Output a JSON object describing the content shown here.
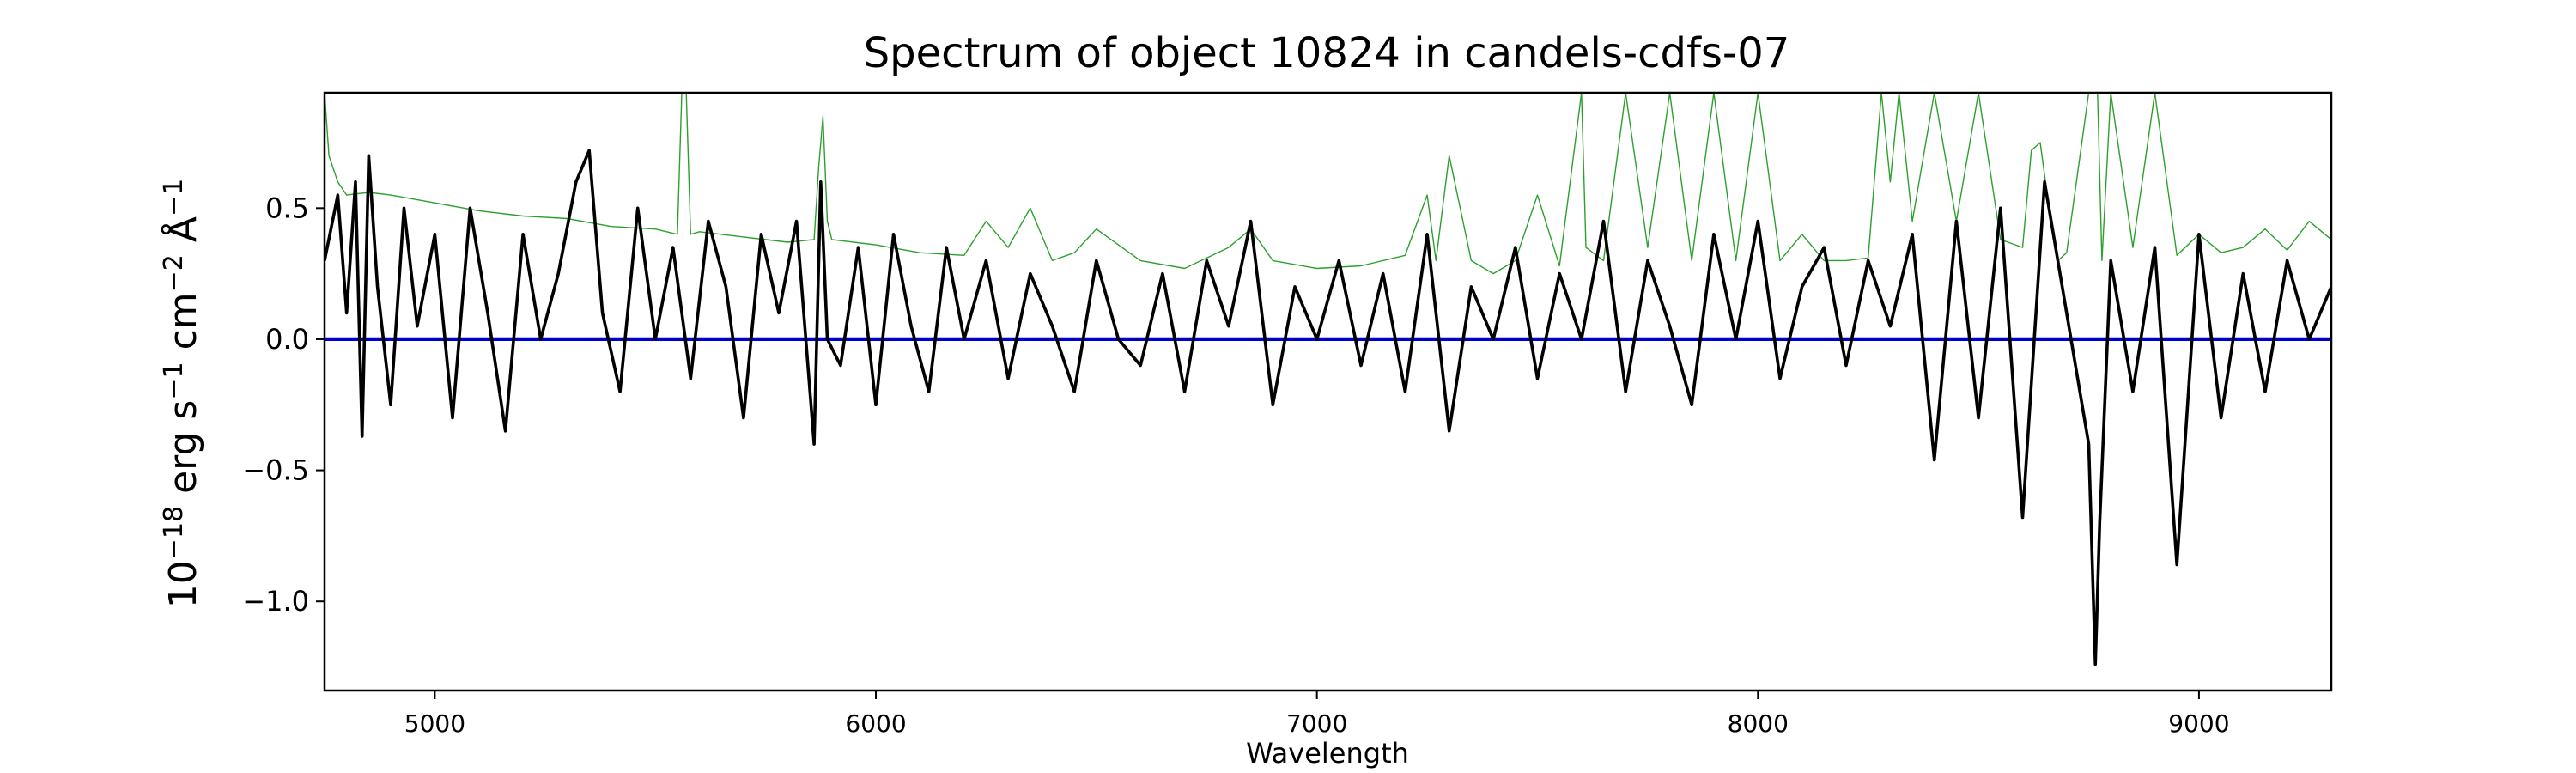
{
  "chart_data": {
    "type": "line",
    "title": "Spectrum of object 10824 in candels-cdfs-07",
    "xlabel": "Wavelength",
    "ylabel_parts": [
      "10",
      "−18",
      " erg s",
      "−1",
      " cm",
      "−2",
      " Å",
      "−1"
    ],
    "xlim": [
      4750,
      9300
    ],
    "ylim": [
      -1.34,
      0.94
    ],
    "xticks": [
      5000,
      6000,
      7000,
      8000,
      9000
    ],
    "xtick_labels": [
      "5000",
      "6000",
      "7000",
      "8000",
      "9000"
    ],
    "yticks": [
      -1.0,
      -0.5,
      0.0,
      0.5
    ],
    "ytick_labels": [
      "−1.0",
      "−0.5",
      "0.0",
      "0.5"
    ],
    "grid": false,
    "colors": {
      "flux": "#000000",
      "error": "#2ca02c",
      "zero": "#0000cc"
    },
    "series": [
      {
        "key": "flux",
        "style": "thick",
        "x": [
          4750,
          4780,
          4800,
          4820,
          4835,
          4850,
          4870,
          4900,
          4930,
          4960,
          5000,
          5040,
          5080,
          5120,
          5160,
          5200,
          5240,
          5280,
          5320,
          5350,
          5380,
          5420,
          5460,
          5500,
          5540,
          5580,
          5620,
          5660,
          5700,
          5740,
          5780,
          5820,
          5860,
          5875,
          5890,
          5920,
          5960,
          6000,
          6040,
          6080,
          6120,
          6160,
          6200,
          6250,
          6300,
          6350,
          6400,
          6450,
          6500,
          6550,
          6600,
          6650,
          6700,
          6750,
          6800,
          6850,
          6900,
          6950,
          7000,
          7050,
          7100,
          7150,
          7200,
          7250,
          7300,
          7350,
          7400,
          7450,
          7500,
          7550,
          7600,
          7650,
          7700,
          7750,
          7800,
          7850,
          7900,
          7950,
          8000,
          8050,
          8100,
          8150,
          8200,
          8250,
          8300,
          8350,
          8400,
          8450,
          8500,
          8550,
          8600,
          8650,
          8700,
          8750,
          8765,
          8775,
          8800,
          8850,
          8900,
          8950,
          9000,
          9050,
          9100,
          9150,
          9200,
          9250,
          9300
        ],
        "y": [
          0.3,
          0.55,
          0.1,
          0.6,
          -0.37,
          0.7,
          0.2,
          -0.25,
          0.5,
          0.05,
          0.4,
          -0.3,
          0.5,
          0.1,
          -0.35,
          0.4,
          0.0,
          0.25,
          0.6,
          0.72,
          0.1,
          -0.2,
          0.5,
          0.0,
          0.35,
          -0.15,
          0.45,
          0.2,
          -0.3,
          0.4,
          0.1,
          0.45,
          -0.4,
          0.6,
          0.0,
          -0.1,
          0.35,
          -0.25,
          0.4,
          0.05,
          -0.2,
          0.35,
          0.0,
          0.3,
          -0.15,
          0.25,
          0.05,
          -0.2,
          0.3,
          0.0,
          -0.1,
          0.25,
          -0.2,
          0.3,
          0.05,
          0.45,
          -0.25,
          0.2,
          0.0,
          0.3,
          -0.1,
          0.25,
          -0.2,
          0.4,
          -0.35,
          0.2,
          0.0,
          0.35,
          -0.15,
          0.25,
          0.0,
          0.45,
          -0.2,
          0.3,
          0.05,
          -0.25,
          0.4,
          0.0,
          0.45,
          -0.15,
          0.2,
          0.35,
          -0.1,
          0.3,
          0.05,
          0.4,
          -0.46,
          0.45,
          -0.3,
          0.5,
          -0.68,
          0.6,
          0.1,
          -0.4,
          -1.24,
          -0.7,
          0.3,
          -0.2,
          0.35,
          -0.86,
          0.4,
          -0.3,
          0.25,
          -0.2,
          0.3,
          0.0,
          0.2
        ]
      },
      {
        "key": "error",
        "style": "thin",
        "x": [
          4750,
          4760,
          4780,
          4800,
          4850,
          4900,
          5000,
          5100,
          5200,
          5300,
          5400,
          5500,
          5550,
          5560,
          5570,
          5580,
          5600,
          5700,
          5800,
          5860,
          5870,
          5880,
          5890,
          5900,
          6000,
          6100,
          6200,
          6250,
          6300,
          6350,
          6400,
          6450,
          6500,
          6600,
          6700,
          6800,
          6850,
          6900,
          7000,
          7100,
          7200,
          7250,
          7270,
          7300,
          7350,
          7400,
          7450,
          7500,
          7550,
          7600,
          7610,
          7650,
          7700,
          7750,
          7800,
          7850,
          7900,
          7950,
          8000,
          8050,
          8100,
          8150,
          8200,
          8250,
          8280,
          8300,
          8320,
          8350,
          8400,
          8450,
          8500,
          8550,
          8600,
          8620,
          8640,
          8660,
          8680,
          8700,
          8750,
          8770,
          8780,
          8800,
          8850,
          8900,
          8950,
          9000,
          9050,
          9100,
          9150,
          9200,
          9250,
          9300
        ],
        "y": [
          0.94,
          0.7,
          0.6,
          0.55,
          0.56,
          0.55,
          0.52,
          0.49,
          0.47,
          0.46,
          0.43,
          0.42,
          0.4,
          0.94,
          0.94,
          0.4,
          0.41,
          0.39,
          0.37,
          0.38,
          0.65,
          0.85,
          0.45,
          0.38,
          0.36,
          0.33,
          0.32,
          0.45,
          0.35,
          0.5,
          0.3,
          0.33,
          0.42,
          0.3,
          0.27,
          0.35,
          0.42,
          0.3,
          0.27,
          0.28,
          0.32,
          0.55,
          0.3,
          0.7,
          0.3,
          0.25,
          0.3,
          0.55,
          0.28,
          0.94,
          0.35,
          0.3,
          0.94,
          0.35,
          0.94,
          0.3,
          0.94,
          0.3,
          0.94,
          0.3,
          0.4,
          0.3,
          0.3,
          0.31,
          0.94,
          0.6,
          0.94,
          0.45,
          0.94,
          0.45,
          0.94,
          0.38,
          0.35,
          0.72,
          0.75,
          0.5,
          0.3,
          0.33,
          0.94,
          0.94,
          0.3,
          0.94,
          0.35,
          0.94,
          0.32,
          0.4,
          0.33,
          0.35,
          0.42,
          0.34,
          0.45,
          0.38
        ]
      },
      {
        "key": "zero",
        "style": "medium",
        "x": [
          4750,
          9300
        ],
        "y": [
          0.0,
          0.0
        ]
      }
    ]
  }
}
